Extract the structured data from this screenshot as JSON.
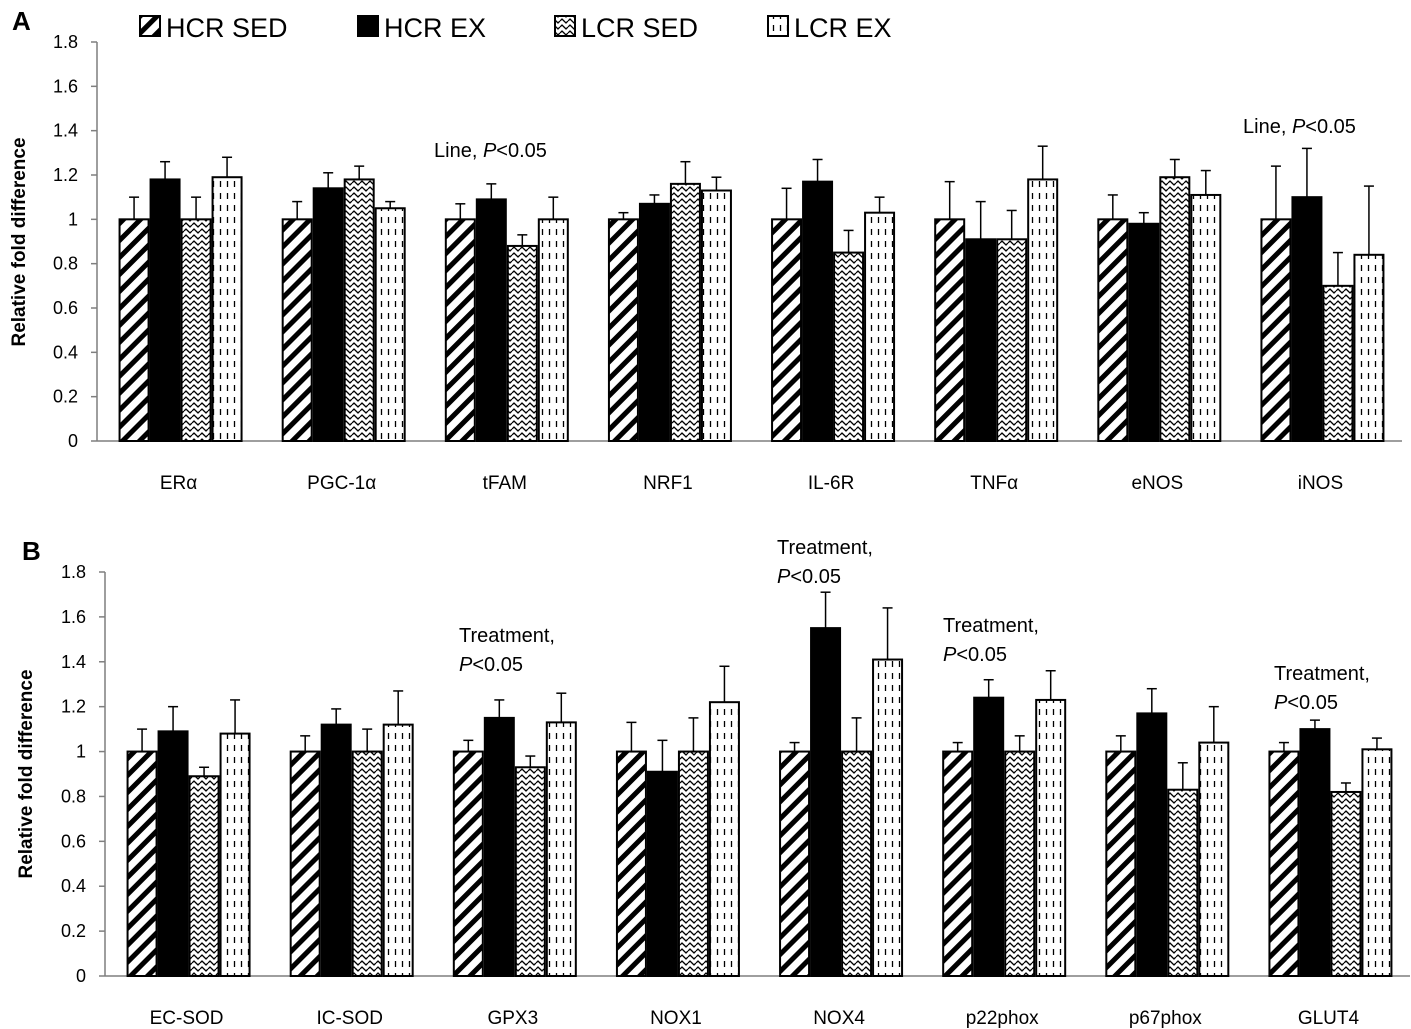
{
  "legend": {
    "items": [
      {
        "label": "HCR SED",
        "pattern": "diagonal"
      },
      {
        "label": "HCR EX",
        "pattern": "solid"
      },
      {
        "label": "LCR SED",
        "pattern": "wave"
      },
      {
        "label": "LCR EX",
        "pattern": "dashed"
      }
    ]
  },
  "chart_data": [
    {
      "panel": "A",
      "type": "bar",
      "ylabel": "Relative fold difference",
      "ylim": [
        0,
        1.8
      ],
      "yticks": [
        "0",
        "0.2",
        "0.4",
        "0.6",
        "0.8",
        "1",
        "1.2",
        "1.4",
        "1.6",
        "1.8"
      ],
      "categories": [
        "ERα",
        "PGC-1α",
        "tFAM",
        "NRF1",
        "IL-6R",
        "TNFα",
        "eNOS",
        "iNOS"
      ],
      "series": [
        {
          "name": "HCR SED",
          "values": [
            1.0,
            1.0,
            1.0,
            1.0,
            1.0,
            1.0,
            1.0,
            1.0
          ],
          "errors": [
            0.1,
            0.08,
            0.07,
            0.03,
            0.14,
            0.17,
            0.11,
            0.24
          ]
        },
        {
          "name": "HCR EX",
          "values": [
            1.18,
            1.14,
            1.09,
            1.07,
            1.17,
            0.91,
            0.98,
            1.1
          ],
          "errors": [
            0.08,
            0.07,
            0.07,
            0.04,
            0.1,
            0.17,
            0.05,
            0.22
          ]
        },
        {
          "name": "LCR SED",
          "values": [
            1.0,
            1.18,
            0.88,
            1.16,
            0.85,
            0.91,
            1.19,
            0.7
          ],
          "errors": [
            0.1,
            0.06,
            0.05,
            0.1,
            0.1,
            0.13,
            0.08,
            0.15
          ]
        },
        {
          "name": "LCR EX",
          "values": [
            1.19,
            1.05,
            1.0,
            1.13,
            1.03,
            1.18,
            1.11,
            0.84
          ],
          "errors": [
            0.09,
            0.03,
            0.1,
            0.06,
            0.07,
            0.15,
            0.11,
            0.31
          ]
        }
      ],
      "annotations": [
        {
          "category": "tFAM",
          "lines": [
            {
              "text": "Line, ",
              "italic": "P",
              "rest": "<0.05"
            }
          ]
        },
        {
          "category": "iNOS",
          "lines": [
            {
              "text": "Line, ",
              "italic": "P",
              "rest": "<0.05"
            }
          ]
        }
      ]
    },
    {
      "panel": "B",
      "type": "bar",
      "ylabel": "Relative fold difference",
      "ylim": [
        0,
        1.8
      ],
      "yticks": [
        "0",
        "0.2",
        "0.4",
        "0.6",
        "0.8",
        "1",
        "1.2",
        "1.4",
        "1.6",
        "1.8"
      ],
      "categories": [
        "EC-SOD",
        "IC-SOD",
        "GPX3",
        "NOX1",
        "NOX4",
        "p22phox",
        "p67phox",
        "GLUT4"
      ],
      "series": [
        {
          "name": "HCR SED",
          "values": [
            1.0,
            1.0,
            1.0,
            1.0,
            1.0,
            1.0,
            1.0,
            1.0
          ],
          "errors": [
            0.1,
            0.07,
            0.05,
            0.13,
            0.04,
            0.04,
            0.07,
            0.04
          ]
        },
        {
          "name": "HCR EX",
          "values": [
            1.09,
            1.12,
            1.15,
            0.91,
            1.55,
            1.24,
            1.17,
            1.1
          ],
          "errors": [
            0.11,
            0.07,
            0.08,
            0.14,
            0.16,
            0.08,
            0.11,
            0.04
          ]
        },
        {
          "name": "LCR SED",
          "values": [
            0.89,
            1.0,
            0.93,
            1.0,
            1.0,
            1.0,
            0.83,
            0.82
          ],
          "errors": [
            0.04,
            0.1,
            0.05,
            0.15,
            0.15,
            0.07,
            0.12,
            0.04
          ]
        },
        {
          "name": "LCR EX",
          "values": [
            1.08,
            1.12,
            1.13,
            1.22,
            1.41,
            1.23,
            1.04,
            1.01
          ],
          "errors": [
            0.15,
            0.15,
            0.13,
            0.16,
            0.23,
            0.13,
            0.16,
            0.05
          ]
        }
      ],
      "annotations": [
        {
          "category": "GPX3",
          "lines": [
            {
              "text": "Treatment,"
            },
            {
              "text": "",
              "italic": "P",
              "rest": "<0.05"
            }
          ]
        },
        {
          "category": "NOX4",
          "lines": [
            {
              "text": "Treatment,"
            },
            {
              "text": "",
              "italic": "P",
              "rest": "<0.05"
            }
          ]
        },
        {
          "category": "p22phox",
          "lines": [
            {
              "text": "Treatment,"
            },
            {
              "text": "",
              "italic": "P",
              "rest": "<0.05"
            }
          ]
        },
        {
          "category": "GLUT4",
          "lines": [
            {
              "text": "Treatment,"
            },
            {
              "text": "",
              "italic": "P",
              "rest": "<0.05"
            }
          ]
        }
      ]
    }
  ]
}
